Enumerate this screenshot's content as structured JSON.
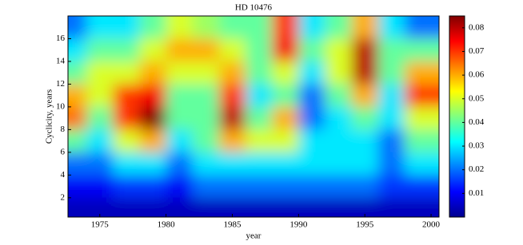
{
  "chart_data": {
    "type": "heatmap",
    "title": "HD 10476",
    "x_label": "year",
    "y_label": "Cyclicity, years",
    "x": [
      1973,
      1975,
      1977,
      1979,
      1981,
      1983,
      1985,
      1987,
      1989,
      1991,
      1993,
      1995,
      1997,
      1999
    ],
    "y": [
      17,
      15,
      13,
      11,
      9,
      7,
      5,
      3,
      1
    ],
    "z": [
      [
        0.02,
        0.03,
        0.03,
        0.04,
        0.05,
        0.045,
        0.04,
        0.04,
        0.07,
        0.03,
        0.04,
        0.06,
        0.03,
        0.02
      ],
      [
        0.03,
        0.04,
        0.04,
        0.05,
        0.06,
        0.06,
        0.05,
        0.04,
        0.075,
        0.04,
        0.05,
        0.08,
        0.04,
        0.04
      ],
      [
        0.04,
        0.05,
        0.05,
        0.06,
        0.05,
        0.05,
        0.06,
        0.04,
        0.05,
        0.03,
        0.05,
        0.08,
        0.04,
        0.06
      ],
      [
        0.06,
        0.05,
        0.07,
        0.075,
        0.04,
        0.04,
        0.07,
        0.03,
        0.04,
        0.02,
        0.04,
        0.06,
        0.03,
        0.07
      ],
      [
        0.065,
        0.04,
        0.07,
        0.085,
        0.04,
        0.04,
        0.08,
        0.04,
        0.06,
        0.02,
        0.03,
        0.04,
        0.03,
        0.05
      ],
      [
        0.04,
        0.03,
        0.05,
        0.06,
        0.03,
        0.04,
        0.06,
        0.05,
        0.05,
        0.03,
        0.03,
        0.03,
        0.02,
        0.04
      ],
      [
        0.02,
        0.02,
        0.03,
        0.03,
        0.02,
        0.03,
        0.03,
        0.03,
        0.03,
        0.03,
        0.03,
        0.03,
        0.02,
        0.03
      ],
      [
        0.01,
        0.01,
        0.015,
        0.015,
        0.01,
        0.02,
        0.02,
        0.02,
        0.02,
        0.02,
        0.02,
        0.02,
        0.015,
        0.015
      ],
      [
        0.005,
        0.005,
        0.005,
        0.005,
        0.005,
        0.005,
        0.005,
        0.005,
        0.005,
        0.005,
        0.005,
        0.005,
        0.005,
        0.005
      ]
    ],
    "xlim": [
      1972.6,
      2000.6
    ],
    "xticks": [
      1975,
      1980,
      1985,
      1990,
      1995,
      2000
    ],
    "ylim": [
      0.3,
      18
    ],
    "yticks": [
      2,
      4,
      6,
      8,
      10,
      12,
      14,
      16
    ],
    "clim": [
      0,
      0.085
    ],
    "cticks": [
      0.01,
      0.02,
      0.03,
      0.04,
      0.05,
      0.06,
      0.07,
      0.08
    ],
    "colormap": "jet"
  }
}
